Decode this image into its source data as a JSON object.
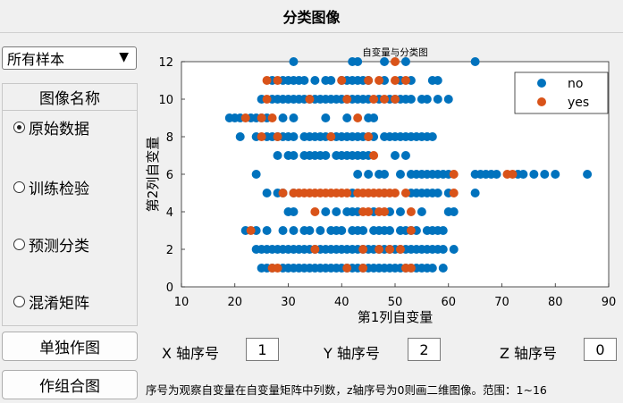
{
  "window": {
    "title": "分类图像"
  },
  "sample_select": {
    "value": "所有样本",
    "arrow": "▼"
  },
  "image_panel": {
    "title": "图像名称",
    "options": [
      {
        "label": "原始数据",
        "checked": true
      },
      {
        "label": "训练检验",
        "checked": false
      },
      {
        "label": "预测分类",
        "checked": false
      },
      {
        "label": "混淆矩阵",
        "checked": false
      }
    ]
  },
  "buttons": {
    "single_plot": "单独作图",
    "combined_plot": "作组合图"
  },
  "axis_inputs": {
    "x_label": "X 轴序号",
    "x_value": "1",
    "y_label": "Y 轴序号",
    "y_value": "2",
    "z_label": "Z 轴序号",
    "z_value": "0"
  },
  "note": "序号为观察自变量在自变量矩阵中列数，z轴序号为0则画二维图像。范围：1~16",
  "colors": {
    "no": "#0072bd",
    "yes": "#d95319"
  },
  "chart_data": {
    "type": "scatter",
    "title": "自变量与分类图",
    "xlabel": "第1列自变量",
    "ylabel": "第2列自变量",
    "xlim": [
      10,
      90
    ],
    "ylim": [
      0,
      12
    ],
    "xticks": [
      "10",
      "20",
      "30",
      "40",
      "50",
      "60",
      "70",
      "80",
      "90"
    ],
    "yticks": [
      "0",
      "2",
      "4",
      "6",
      "8",
      "10",
      "12"
    ],
    "legend_position": "top-right",
    "series": [
      {
        "name": "no",
        "color": "#0072bd",
        "points": [
          [
            31,
            12
          ],
          [
            42,
            12
          ],
          [
            43,
            12
          ],
          [
            48,
            12
          ],
          [
            52,
            12
          ],
          [
            65,
            12
          ],
          [
            27,
            11
          ],
          [
            29,
            11
          ],
          [
            30,
            11
          ],
          [
            31,
            11
          ],
          [
            32,
            11
          ],
          [
            33,
            11
          ],
          [
            35,
            11
          ],
          [
            37,
            11
          ],
          [
            38,
            11
          ],
          [
            40,
            11
          ],
          [
            41,
            11
          ],
          [
            42,
            11
          ],
          [
            43,
            11
          ],
          [
            44,
            11
          ],
          [
            45,
            11
          ],
          [
            48,
            11
          ],
          [
            51,
            11
          ],
          [
            53,
            11
          ],
          [
            57,
            11
          ],
          [
            58,
            11
          ],
          [
            25,
            10
          ],
          [
            27,
            10
          ],
          [
            28,
            10
          ],
          [
            29,
            10
          ],
          [
            30,
            10
          ],
          [
            31,
            10
          ],
          [
            32,
            10
          ],
          [
            33,
            10
          ],
          [
            34,
            10
          ],
          [
            35,
            10
          ],
          [
            36,
            10
          ],
          [
            37,
            10
          ],
          [
            38,
            10
          ],
          [
            39,
            10
          ],
          [
            40,
            10
          ],
          [
            41,
            10
          ],
          [
            42,
            10
          ],
          [
            43,
            10
          ],
          [
            44,
            10
          ],
          [
            45,
            10
          ],
          [
            47,
            10
          ],
          [
            49,
            10
          ],
          [
            50,
            10
          ],
          [
            51,
            10
          ],
          [
            52,
            10
          ],
          [
            53,
            10
          ],
          [
            55,
            10
          ],
          [
            56,
            10
          ],
          [
            58,
            10
          ],
          [
            60,
            10
          ],
          [
            19,
            9
          ],
          [
            20,
            9
          ],
          [
            21,
            9
          ],
          [
            23,
            9
          ],
          [
            24,
            9
          ],
          [
            25,
            9
          ],
          [
            26,
            9
          ],
          [
            29,
            9
          ],
          [
            31,
            9
          ],
          [
            37,
            9
          ],
          [
            41,
            9
          ],
          [
            45,
            9
          ],
          [
            46,
            9
          ],
          [
            21,
            8
          ],
          [
            24,
            8
          ],
          [
            26,
            8
          ],
          [
            27,
            8
          ],
          [
            28,
            8
          ],
          [
            29,
            8
          ],
          [
            30,
            8
          ],
          [
            31,
            8
          ],
          [
            33,
            8
          ],
          [
            34,
            8
          ],
          [
            35,
            8
          ],
          [
            36,
            8
          ],
          [
            37,
            8
          ],
          [
            38,
            8
          ],
          [
            39,
            8
          ],
          [
            40,
            8
          ],
          [
            41,
            8
          ],
          [
            42,
            8
          ],
          [
            43,
            8
          ],
          [
            44,
            8
          ],
          [
            45,
            8
          ],
          [
            46,
            8
          ],
          [
            48,
            8
          ],
          [
            49,
            8
          ],
          [
            50,
            8
          ],
          [
            51,
            8
          ],
          [
            52,
            8
          ],
          [
            53,
            8
          ],
          [
            54,
            8
          ],
          [
            55,
            8
          ],
          [
            56,
            8
          ],
          [
            57,
            8
          ],
          [
            28,
            7
          ],
          [
            30,
            7
          ],
          [
            31,
            7
          ],
          [
            33,
            7
          ],
          [
            34,
            7
          ],
          [
            35,
            7
          ],
          [
            36,
            7
          ],
          [
            37,
            7
          ],
          [
            39,
            7
          ],
          [
            40,
            7
          ],
          [
            41,
            7
          ],
          [
            42,
            7
          ],
          [
            43,
            7
          ],
          [
            44,
            7
          ],
          [
            45,
            7
          ],
          [
            50,
            7
          ],
          [
            52,
            7
          ],
          [
            24,
            6
          ],
          [
            43,
            6
          ],
          [
            45,
            6
          ],
          [
            47,
            6
          ],
          [
            48,
            6
          ],
          [
            51,
            6
          ],
          [
            53,
            6
          ],
          [
            54,
            6
          ],
          [
            55,
            6
          ],
          [
            56,
            6
          ],
          [
            57,
            6
          ],
          [
            58,
            6
          ],
          [
            59,
            6
          ],
          [
            60,
            6
          ],
          [
            65,
            6
          ],
          [
            66,
            6
          ],
          [
            67,
            6
          ],
          [
            68,
            6
          ],
          [
            69,
            6
          ],
          [
            73,
            6
          ],
          [
            74,
            6
          ],
          [
            76,
            6
          ],
          [
            78,
            6
          ],
          [
            80,
            6
          ],
          [
            86,
            6
          ],
          [
            26,
            5
          ],
          [
            28,
            5
          ],
          [
            29,
            5
          ],
          [
            31,
            5
          ],
          [
            42,
            5
          ],
          [
            48,
            5
          ],
          [
            53,
            5
          ],
          [
            54,
            5
          ],
          [
            55,
            5
          ],
          [
            56,
            5
          ],
          [
            57,
            5
          ],
          [
            58,
            5
          ],
          [
            60,
            5
          ],
          [
            65,
            5
          ],
          [
            30,
            4
          ],
          [
            31,
            4
          ],
          [
            37,
            4
          ],
          [
            39,
            4
          ],
          [
            41,
            4
          ],
          [
            42,
            4
          ],
          [
            43,
            4
          ],
          [
            46,
            4
          ],
          [
            49,
            4
          ],
          [
            51,
            4
          ],
          [
            55,
            4
          ],
          [
            60,
            4
          ],
          [
            61,
            4
          ],
          [
            22,
            3
          ],
          [
            24,
            3
          ],
          [
            26,
            3
          ],
          [
            29,
            3
          ],
          [
            31,
            3
          ],
          [
            33,
            3
          ],
          [
            34,
            3
          ],
          [
            36,
            3
          ],
          [
            38,
            3
          ],
          [
            39,
            3
          ],
          [
            40,
            3
          ],
          [
            42,
            3
          ],
          [
            43,
            3
          ],
          [
            44,
            3
          ],
          [
            46,
            3
          ],
          [
            47,
            3
          ],
          [
            48,
            3
          ],
          [
            49,
            3
          ],
          [
            51,
            3
          ],
          [
            52,
            3
          ],
          [
            53,
            3
          ],
          [
            54,
            3
          ],
          [
            56,
            3
          ],
          [
            57,
            3
          ],
          [
            58,
            3
          ],
          [
            59,
            3
          ],
          [
            24,
            2
          ],
          [
            25,
            2
          ],
          [
            26,
            2
          ],
          [
            27,
            2
          ],
          [
            28,
            2
          ],
          [
            29,
            2
          ],
          [
            30,
            2
          ],
          [
            31,
            2
          ],
          [
            32,
            2
          ],
          [
            33,
            2
          ],
          [
            34,
            2
          ],
          [
            35,
            2
          ],
          [
            36,
            2
          ],
          [
            37,
            2
          ],
          [
            38,
            2
          ],
          [
            39,
            2
          ],
          [
            40,
            2
          ],
          [
            41,
            2
          ],
          [
            42,
            2
          ],
          [
            43,
            2
          ],
          [
            44,
            2
          ],
          [
            45,
            2
          ],
          [
            46,
            2
          ],
          [
            47,
            2
          ],
          [
            48,
            2
          ],
          [
            49,
            2
          ],
          [
            50,
            2
          ],
          [
            51,
            2
          ],
          [
            52,
            2
          ],
          [
            53,
            2
          ],
          [
            54,
            2
          ],
          [
            55,
            2
          ],
          [
            56,
            2
          ],
          [
            57,
            2
          ],
          [
            58,
            2
          ],
          [
            59,
            2
          ],
          [
            61,
            2
          ],
          [
            25,
            1
          ],
          [
            26,
            1
          ],
          [
            27,
            1
          ],
          [
            29,
            1
          ],
          [
            30,
            1
          ],
          [
            31,
            1
          ],
          [
            32,
            1
          ],
          [
            33,
            1
          ],
          [
            34,
            1
          ],
          [
            35,
            1
          ],
          [
            36,
            1
          ],
          [
            37,
            1
          ],
          [
            38,
            1
          ],
          [
            39,
            1
          ],
          [
            40,
            1
          ],
          [
            41,
            1
          ],
          [
            42,
            1
          ],
          [
            43,
            1
          ],
          [
            44,
            1
          ],
          [
            45,
            1
          ],
          [
            46,
            1
          ],
          [
            47,
            1
          ],
          [
            48,
            1
          ],
          [
            49,
            1
          ],
          [
            50,
            1
          ],
          [
            51,
            1
          ],
          [
            52,
            1
          ],
          [
            53,
            1
          ],
          [
            54,
            1
          ],
          [
            55,
            1
          ],
          [
            56,
            1
          ],
          [
            57,
            1
          ],
          [
            59,
            1
          ]
        ]
      },
      {
        "name": "yes",
        "color": "#d95319",
        "points": [
          [
            50,
            12
          ],
          [
            26,
            11
          ],
          [
            28,
            11
          ],
          [
            40,
            11
          ],
          [
            45,
            11
          ],
          [
            47,
            11
          ],
          [
            50,
            11
          ],
          [
            52,
            11
          ],
          [
            26,
            10
          ],
          [
            34,
            10
          ],
          [
            41,
            10
          ],
          [
            46,
            10
          ],
          [
            48,
            10
          ],
          [
            50,
            10
          ],
          [
            22,
            9
          ],
          [
            25,
            9
          ],
          [
            27,
            9
          ],
          [
            43,
            9
          ],
          [
            25,
            8
          ],
          [
            28,
            8
          ],
          [
            38,
            8
          ],
          [
            45,
            8
          ],
          [
            46,
            7
          ],
          [
            61,
            6
          ],
          [
            71,
            6
          ],
          [
            72,
            6
          ],
          [
            29,
            5
          ],
          [
            31,
            5
          ],
          [
            32,
            5
          ],
          [
            33,
            5
          ],
          [
            34,
            5
          ],
          [
            35,
            5
          ],
          [
            36,
            5
          ],
          [
            37,
            5
          ],
          [
            38,
            5
          ],
          [
            39,
            5
          ],
          [
            40,
            5
          ],
          [
            41,
            5
          ],
          [
            43,
            5
          ],
          [
            44,
            5
          ],
          [
            45,
            5
          ],
          [
            46,
            5
          ],
          [
            47,
            5
          ],
          [
            48,
            5
          ],
          [
            49,
            5
          ],
          [
            50,
            5
          ],
          [
            52,
            5
          ],
          [
            61,
            5
          ],
          [
            35,
            4
          ],
          [
            44,
            4
          ],
          [
            45,
            4
          ],
          [
            47,
            4
          ],
          [
            48,
            4
          ],
          [
            53,
            4
          ],
          [
            23,
            3
          ],
          [
            53,
            3
          ],
          [
            35,
            2
          ],
          [
            44,
            2
          ],
          [
            47,
            2
          ],
          [
            49,
            2
          ],
          [
            51,
            2
          ],
          [
            27,
            1
          ],
          [
            28,
            1
          ],
          [
            41,
            1
          ],
          [
            44,
            1
          ],
          [
            52,
            1
          ],
          [
            53,
            1
          ]
        ]
      }
    ]
  }
}
